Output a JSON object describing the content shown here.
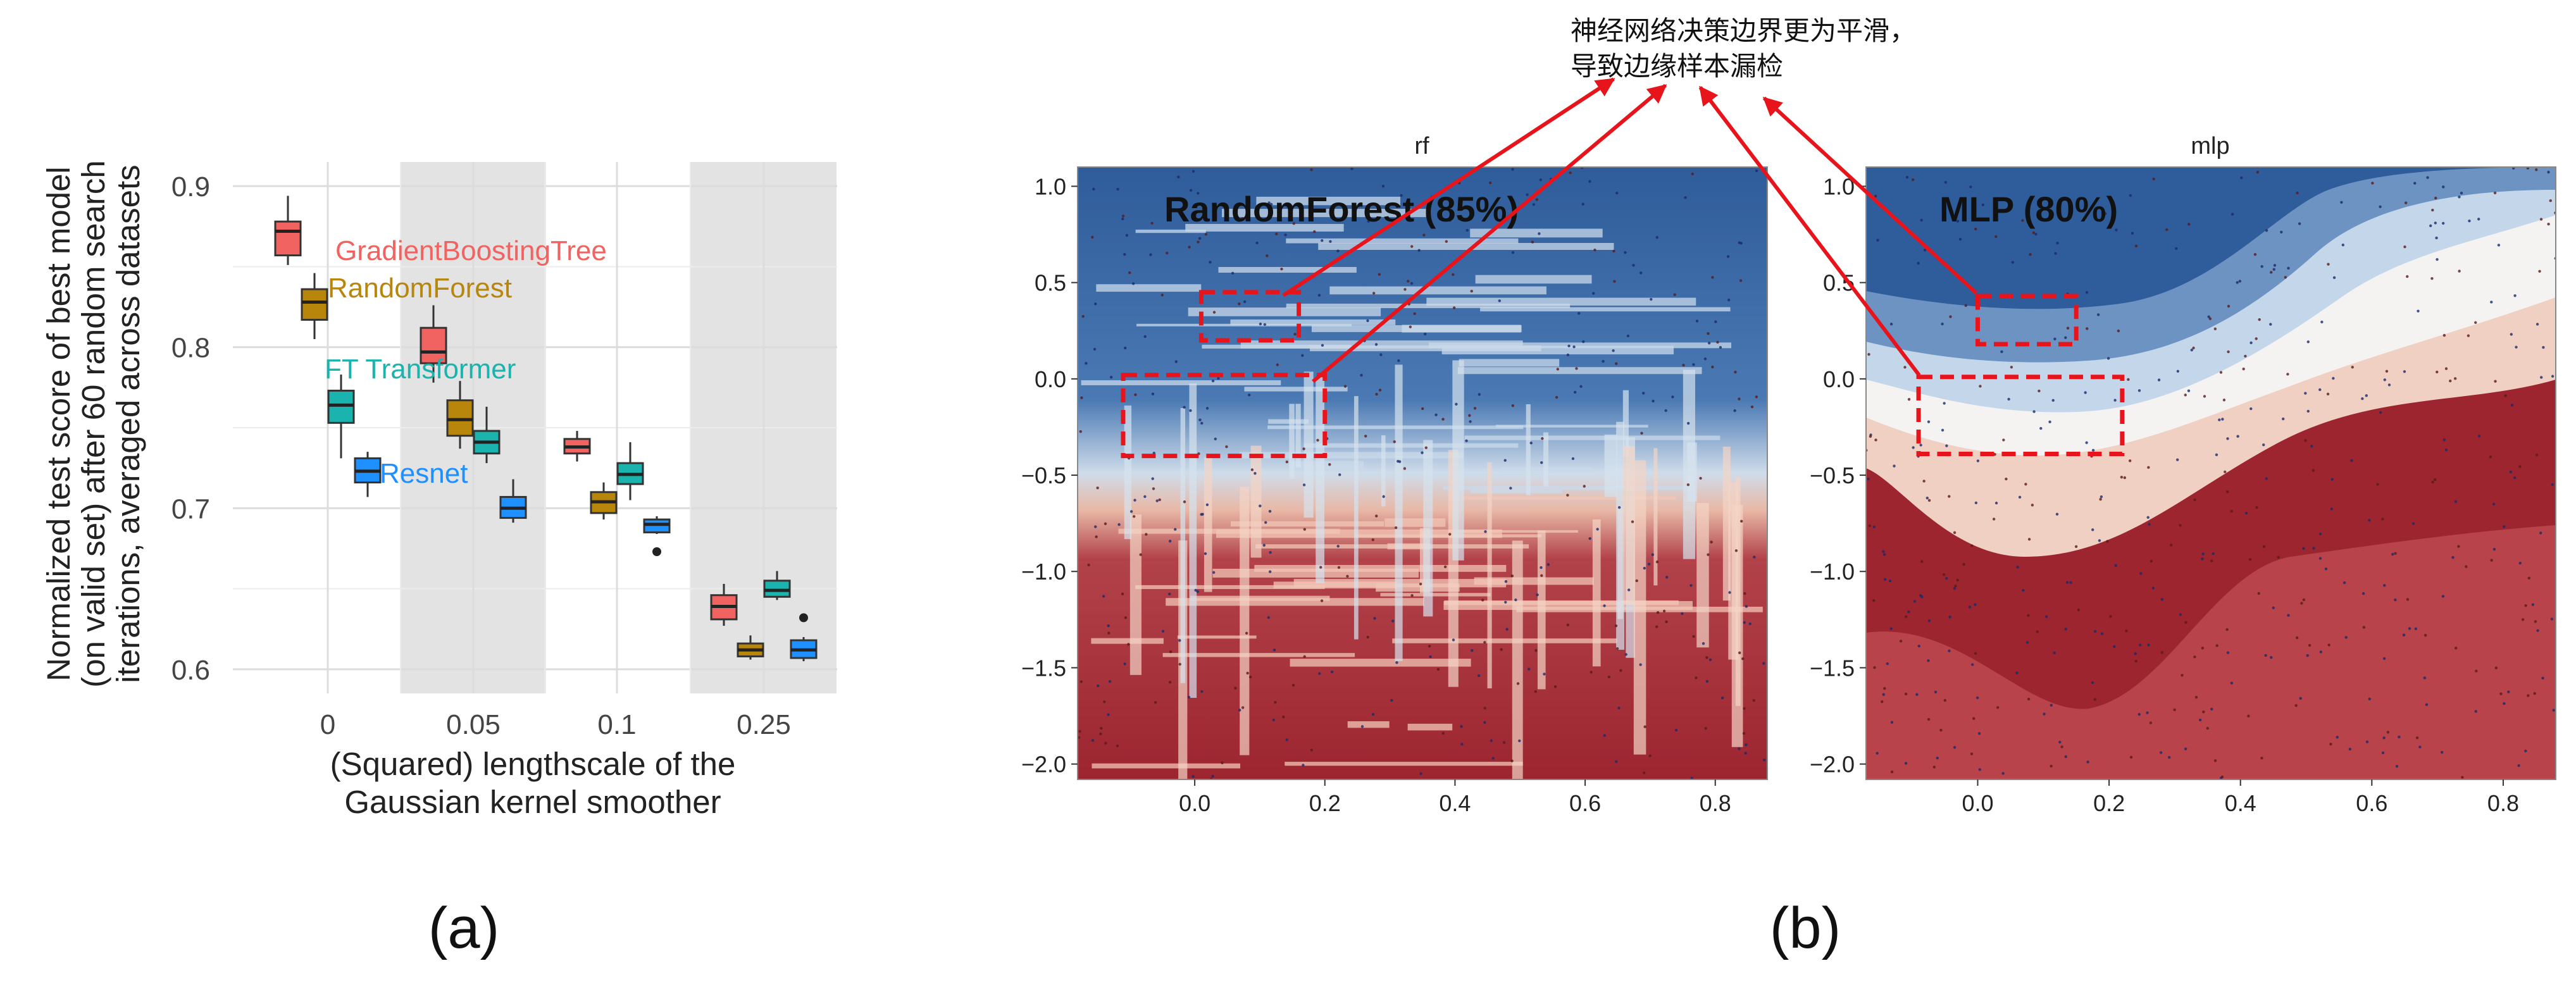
{
  "panel_labels": {
    "a": "(a)",
    "b": "(b)"
  },
  "annotation": {
    "line1": "神经网络决策边界更为平滑，",
    "line2": "导致边缘样本漏检",
    "arrow_color": "#e8141c"
  },
  "chart_data": [
    {
      "type": "box",
      "panel": "a",
      "xlabel_lines": [
        "(Squared) lengthscale of the",
        "Gaussian kernel smoother"
      ],
      "ylabel_lines": [
        "Normalized test score of best model",
        "(on valid set) after 60 random search",
        "iterations, averaged across datasets"
      ],
      "categories": [
        "0",
        "0.05",
        "0.1",
        "0.25"
      ],
      "shaded_categories": [
        "0.05",
        "0.25"
      ],
      "ylim": [
        0.585,
        0.915
      ],
      "yticks": [
        0.6,
        0.7,
        0.8,
        0.9
      ],
      "ytick_labels": [
        "0.6",
        "0.7",
        "0.8",
        "0.9"
      ],
      "grid": true,
      "series": [
        {
          "name": "GradientBoostingTree",
          "color": "#f06360",
          "boxes": [
            {
              "category": "0",
              "low": 0.851,
              "q1": 0.857,
              "median": 0.872,
              "q3": 0.878,
              "high": 0.894
            },
            {
              "category": "0.05",
              "low": 0.778,
              "q1": 0.79,
              "median": 0.797,
              "q3": 0.812,
              "high": 0.826
            },
            {
              "category": "0.1",
              "low": 0.729,
              "q1": 0.734,
              "median": 0.738,
              "q3": 0.743,
              "high": 0.748
            },
            {
              "category": "0.25",
              "low": 0.627,
              "q1": 0.631,
              "median": 0.639,
              "q3": 0.646,
              "high": 0.653
            }
          ]
        },
        {
          "name": "RandomForest",
          "color": "#b8860b",
          "boxes": [
            {
              "category": "0",
              "low": 0.805,
              "q1": 0.817,
              "median": 0.828,
              "q3": 0.836,
              "high": 0.846
            },
            {
              "category": "0.05",
              "low": 0.737,
              "q1": 0.745,
              "median": 0.755,
              "q3": 0.767,
              "high": 0.779
            },
            {
              "category": "0.1",
              "low": 0.693,
              "q1": 0.697,
              "median": 0.704,
              "q3": 0.71,
              "high": 0.716
            },
            {
              "category": "0.25",
              "low": 0.606,
              "q1": 0.608,
              "median": 0.612,
              "q3": 0.616,
              "high": 0.621
            }
          ]
        },
        {
          "name": "FT Transformer",
          "color": "#1ab3ad",
          "boxes": [
            {
              "category": "0",
              "low": 0.731,
              "q1": 0.753,
              "median": 0.764,
              "q3": 0.773,
              "high": 0.783
            },
            {
              "category": "0.05",
              "low": 0.728,
              "q1": 0.734,
              "median": 0.741,
              "q3": 0.748,
              "high": 0.763
            },
            {
              "category": "0.1",
              "low": 0.705,
              "q1": 0.715,
              "median": 0.721,
              "q3": 0.728,
              "high": 0.741
            },
            {
              "category": "0.25",
              "low": 0.643,
              "q1": 0.645,
              "median": 0.649,
              "q3": 0.655,
              "high": 0.661
            }
          ]
        },
        {
          "name": "Resnet",
          "color": "#1e90ff",
          "boxes": [
            {
              "category": "0",
              "low": 0.707,
              "q1": 0.716,
              "median": 0.723,
              "q3": 0.731,
              "high": 0.735
            },
            {
              "category": "0.05",
              "low": 0.691,
              "q1": 0.694,
              "median": 0.7,
              "q3": 0.707,
              "high": 0.718
            },
            {
              "category": "0.1",
              "low": 0.684,
              "q1": 0.685,
              "median": 0.69,
              "q3": 0.693,
              "high": 0.695,
              "outliers": [
                0.673
              ]
            },
            {
              "category": "0.25",
              "low": 0.605,
              "q1": 0.607,
              "median": 0.612,
              "q3": 0.618,
              "high": 0.62,
              "outliers": [
                0.632
              ]
            }
          ]
        }
      ]
    },
    {
      "type": "heatmap",
      "panel": "b-left",
      "title": "rf",
      "overlay_text": "RandomForest (85%)",
      "xlim": [
        -0.18,
        0.88
      ],
      "ylim": [
        -2.08,
        1.1
      ],
      "xticks": [
        0.0,
        0.2,
        0.4,
        0.6,
        0.8
      ],
      "xtick_labels": [
        "0.0",
        "0.2",
        "0.4",
        "0.6",
        "0.8"
      ],
      "yticks": [
        -2.0,
        -1.5,
        -1.0,
        -0.5,
        0.0,
        0.5,
        1.0
      ],
      "ytick_labels": [
        "−2.0",
        "−1.5",
        "−1.0",
        "−0.5",
        "0.0",
        "0.5",
        "1.0"
      ],
      "colors": {
        "class_a": "#2f5c9a",
        "class_b": "#9c2530",
        "boundary": "#f3f0ee"
      },
      "highlight_boxes": [
        {
          "x0": 0.01,
          "x1": 0.16,
          "y0": 0.2,
          "y1": 0.45
        },
        {
          "x0": -0.11,
          "x1": 0.2,
          "y0": -0.4,
          "y1": 0.02
        }
      ]
    },
    {
      "type": "heatmap",
      "panel": "b-right",
      "title": "mlp",
      "overlay_text": "MLP (80%)",
      "xlim": [
        -0.17,
        0.88
      ],
      "ylim": [
        -2.08,
        1.1
      ],
      "xticks": [
        0.0,
        0.2,
        0.4,
        0.6,
        0.8
      ],
      "xtick_labels": [
        "0.0",
        "0.2",
        "0.4",
        "0.6",
        "0.8"
      ],
      "yticks": [
        -2.0,
        -1.5,
        -1.0,
        -0.5,
        0.0,
        0.5,
        1.0
      ],
      "ytick_labels": [
        "−2.0",
        "−1.5",
        "−1.0",
        "−0.5",
        "0.0",
        "0.5",
        "1.0"
      ],
      "colors": {
        "class_a": "#2f5c9a",
        "class_b": "#9c2530",
        "boundary": "#f3f0ee"
      },
      "highlight_boxes": [
        {
          "x0": 0.0,
          "x1": 0.15,
          "y0": 0.18,
          "y1": 0.43
        },
        {
          "x0": -0.09,
          "x1": 0.22,
          "y0": -0.39,
          "y1": 0.01
        }
      ]
    }
  ]
}
